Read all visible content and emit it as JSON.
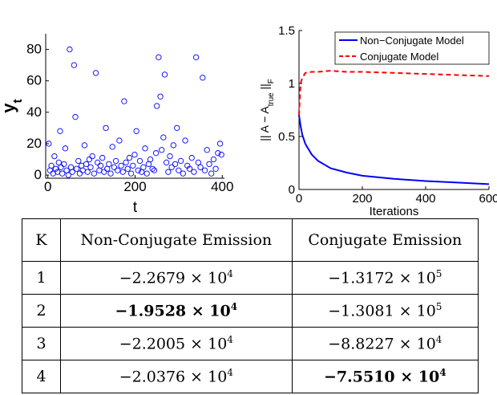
{
  "chart_data": [
    {
      "type": "scatter",
      "xlabel": "t",
      "ylabel": [
        "y",
        "t"
      ],
      "color": "#0000ff",
      "xlim": [
        -5,
        405
      ],
      "ylim": [
        -2,
        90
      ],
      "xticks": [
        0,
        200,
        400
      ],
      "yticks": [
        0,
        20,
        40,
        60,
        80
      ],
      "x": [
        2,
        5,
        8,
        12,
        15,
        18,
        22,
        25,
        28,
        30,
        33,
        37,
        40,
        43,
        47,
        50,
        53,
        56,
        60,
        63,
        66,
        70,
        73,
        77,
        80,
        84,
        88,
        91,
        95,
        98,
        102,
        106,
        110,
        114,
        118,
        121,
        125,
        129,
        133,
        136,
        140,
        144,
        148,
        152,
        156,
        160,
        164,
        168,
        172,
        175,
        179,
        183,
        187,
        191,
        195,
        199,
        203,
        207,
        211,
        215,
        219,
        223,
        227,
        231,
        235,
        240,
        244,
        248,
        250,
        254,
        258,
        261,
        265,
        268,
        272,
        276,
        280,
        284,
        288,
        292,
        296,
        300,
        305,
        310,
        315,
        320,
        325,
        330,
        335,
        340,
        345,
        350,
        355,
        360,
        365,
        370,
        375,
        380,
        385,
        390,
        395,
        398
      ],
      "values": [
        20,
        3,
        6,
        1,
        12,
        4,
        2,
        8,
        28,
        5,
        1,
        7,
        17,
        3,
        0,
        80,
        5,
        2,
        70,
        37,
        4,
        9,
        1,
        6,
        3,
        19,
        7,
        2,
        10,
        5,
        12,
        1,
        65,
        8,
        3,
        6,
        11,
        2,
        30,
        4,
        7,
        1,
        18,
        5,
        9,
        3,
        22,
        6,
        2,
        47,
        8,
        4,
        11,
        1,
        6,
        13,
        28,
        3,
        9,
        2,
        5,
        17,
        1,
        7,
        10,
        4,
        3,
        14,
        44,
        75,
        50,
        16,
        24,
        64,
        8,
        2,
        12,
        5,
        19,
        7,
        30,
        3,
        9,
        1,
        22,
        6,
        4,
        11,
        2,
        75,
        8,
        5,
        62,
        3,
        16,
        7,
        1,
        10,
        4,
        14,
        20,
        13
      ]
    },
    {
      "type": "line",
      "xlabel": "Iterations",
      "ylabel": [
        "|| A − A",
        "true",
        " ||",
        "F"
      ],
      "xlim": [
        0,
        600
      ],
      "ylim": [
        0,
        1.5
      ],
      "xticks": [
        0,
        200,
        400,
        600
      ],
      "yticks": [
        0,
        0.5,
        1,
        1.5
      ],
      "legend": "upper right",
      "x": [
        0,
        5,
        10,
        20,
        40,
        60,
        100,
        150,
        200,
        300,
        400,
        500,
        600
      ],
      "series": [
        {
          "name": "Non−Conjugate Model",
          "color": "#0000ff",
          "dash": false,
          "values": [
            0.7,
            0.6,
            0.52,
            0.43,
            0.33,
            0.27,
            0.2,
            0.16,
            0.13,
            0.1,
            0.08,
            0.065,
            0.05
          ]
        },
        {
          "name": "Conjugate Model",
          "color": "#ff0000",
          "dash": true,
          "values": [
            0.7,
            1.0,
            1.05,
            1.1,
            1.11,
            1.11,
            1.12,
            1.11,
            1.11,
            1.1,
            1.09,
            1.08,
            1.07
          ]
        }
      ]
    }
  ],
  "table": {
    "header": [
      "K",
      "Non-Conjugate Emission",
      "Conjugate Emission"
    ],
    "rows": [
      [
        {
          "text": "1"
        },
        {
          "text": "−2.2679 × 10",
          "exp": "4"
        },
        {
          "text": "−1.3172 × 10",
          "exp": "5"
        }
      ],
      [
        {
          "text": "2"
        },
        {
          "text": "−1.9528 × 10",
          "exp": "4",
          "bold": true
        },
        {
          "text": "−1.3081 × 10",
          "exp": "5"
        }
      ],
      [
        {
          "text": "3"
        },
        {
          "text": "−2.2005 × 10",
          "exp": "4"
        },
        {
          "text": "−8.8227 × 10",
          "exp": "4"
        }
      ],
      [
        {
          "text": "4"
        },
        {
          "text": "−2.0376 × 10",
          "exp": "4"
        },
        {
          "text": "−7.5510 × 10",
          "exp": "4",
          "bold": true
        }
      ]
    ]
  }
}
